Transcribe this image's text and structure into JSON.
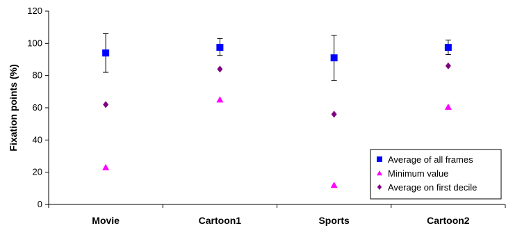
{
  "chart_data": {
    "type": "scatter",
    "title": "",
    "xlabel": "",
    "ylabel": "Fixation points (%)",
    "categories": [
      "Movie",
      "Cartoon1",
      "Sports",
      "Cartoon2"
    ],
    "ylim": [
      0,
      120
    ],
    "yticks": [
      0,
      20,
      40,
      60,
      80,
      100,
      120
    ],
    "grid": false,
    "legend_position": "bottom-right",
    "series": [
      {
        "name": "Average of all frames",
        "marker": "square",
        "color": "#0000ff",
        "values": [
          94,
          97.5,
          91,
          97.5
        ],
        "error_high": [
          106,
          103,
          105,
          102
        ],
        "error_low": [
          82,
          92.5,
          77,
          93
        ]
      },
      {
        "name": "Minimum value",
        "marker": "triangle",
        "color": "#ff00ff",
        "values": [
          23,
          65,
          12,
          60.5
        ]
      },
      {
        "name": "Average on first decile",
        "marker": "diamond",
        "color": "#800080",
        "values": [
          62,
          84,
          56,
          86
        ]
      }
    ]
  }
}
